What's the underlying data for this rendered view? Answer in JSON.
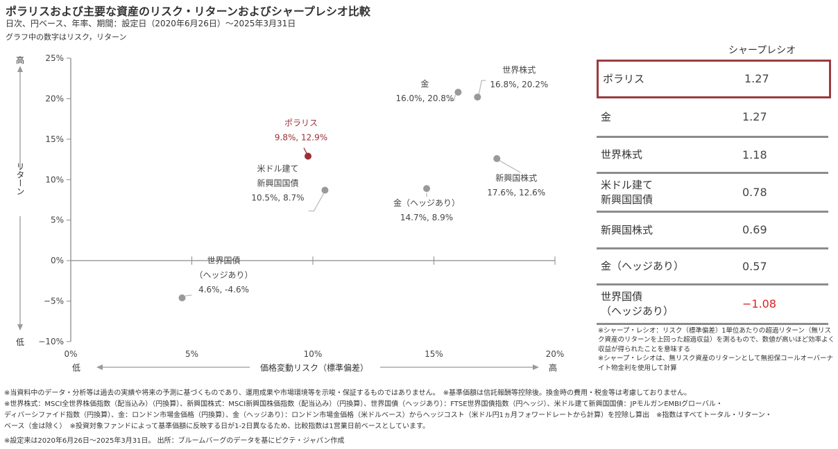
{
  "header": {
    "title": "ポラリスおよび主要な資産のリスク・リターンおよびシャープレシオ比較",
    "subtitle": "日次、円ベース、年率、期間：設定日（2020年6月26日）～2025年3月31日",
    "note": "グラフ中の数字はリスク，リターン"
  },
  "chart_data": {
    "type": "scatter",
    "title": "ポラリスおよび主要な資産のリスク・リターンおよびシャープレシオ比較",
    "xlabel": "価格変動リスク（標準偏差）",
    "ylabel": "リターン",
    "xlim": [
      0,
      20
    ],
    "ylim": [
      -10,
      25
    ],
    "x_ticks": [
      "0%",
      "5%",
      "10%",
      "15%",
      "20%"
    ],
    "y_ticks": [
      "25%",
      "20%",
      "15%",
      "10%",
      "5%",
      "0%",
      "−5%",
      "−10%"
    ],
    "x_low_label": "低",
    "x_high_label": "高",
    "y_low_label": "低",
    "y_high_label": "高",
    "colors": {
      "highlight": "#9b2f35",
      "point": "#999999"
    },
    "points": [
      {
        "name": "ポラリス",
        "name_lines": [
          "ポラリス"
        ],
        "label": "9.8%, 12.9%",
        "x": 9.8,
        "y": 12.9,
        "highlight": true
      },
      {
        "name": "金",
        "name_lines": [
          "金"
        ],
        "label": "16.0%, 20.8%",
        "x": 16.0,
        "y": 20.8,
        "highlight": false
      },
      {
        "name": "世界株式",
        "name_lines": [
          "世界株式"
        ],
        "label": "16.8%, 20.2%",
        "x": 16.8,
        "y": 20.2,
        "highlight": false
      },
      {
        "name": "新興国株式",
        "name_lines": [
          "新興国株式"
        ],
        "label": "17.6%, 12.6%",
        "x": 17.6,
        "y": 12.6,
        "highlight": false
      },
      {
        "name": "米ドル建て新興国国債",
        "name_lines": [
          "米ドル建て",
          "新興国国債"
        ],
        "label": "10.5%, 8.7%",
        "x": 10.5,
        "y": 8.7,
        "highlight": false
      },
      {
        "name": "金（ヘッジあり）",
        "name_lines": [
          "金（ヘッジあり）"
        ],
        "label": "14.7%, 8.9%",
        "x": 14.7,
        "y": 8.9,
        "highlight": false
      },
      {
        "name": "世界国債（ヘッジあり）",
        "name_lines": [
          "世界国債",
          "（ヘッジあり）"
        ],
        "label": "4.6%, -4.6%",
        "x": 4.6,
        "y": -4.6,
        "highlight": false
      }
    ]
  },
  "sharpe_table": {
    "header": "シャープレシオ",
    "rows": [
      {
        "name_lines": [
          "ポラリス"
        ],
        "value": "1.27",
        "highlight": true,
        "negative": false
      },
      {
        "name_lines": [
          "金"
        ],
        "value": "1.27",
        "highlight": false,
        "negative": false
      },
      {
        "name_lines": [
          "世界株式"
        ],
        "value": "1.18",
        "highlight": false,
        "negative": false
      },
      {
        "name_lines": [
          "米ドル建て",
          "新興国国債"
        ],
        "value": "0.78",
        "highlight": false,
        "negative": false
      },
      {
        "name_lines": [
          "新興国株式"
        ],
        "value": "0.69",
        "highlight": false,
        "negative": false
      },
      {
        "name_lines": [
          "金（ヘッジあり）"
        ],
        "value": "0.57",
        "highlight": false,
        "negative": false
      },
      {
        "name_lines": [
          "世界国債",
          "（ヘッジあり）"
        ],
        "value": "−1.08",
        "highlight": false,
        "negative": true
      }
    ],
    "notes": [
      "※シャープ・レシオ：リスク（標準偏差）1単位あたりの超過リターン（無リスク資産のリターンを上回った超過収益）を測るもので、数値が高いほど効率よく収益が得られたことを意味する",
      "※シャープ・レシオは、無リスク資産のリターンとして無担保コールオーバーナイト物金利を使用して計算"
    ]
  },
  "footnotes": [
    "※当資料中のデータ・分析等は過去の実績や将来の予測に基づくものであり、運用成果や市場環境等を示唆・保証するものではありません。　※基準価額は信託報酬等控除後。換金時の費用・税金等は考慮しておりません。",
    "※世界株式：MSCI全世界株価指数（配当込み）（円換算）、新興国株式：MSCI新興国株価指数（配当込み）（円換算）、世界国債（ヘッジあり）：FTSE世界国債指数（円ヘッジ）、米ドル建て新興国国債：JPモルガンEMBIグローバル・",
    "ディバーシファイド指数（円換算）、金：ロンドン市場金価格（円換算）、金（ヘッジあり）：ロンドン市場金価格（米ドルベース）からヘッジコスト（米ドル円1ヵ月フォワードレートから計算）を控除し算出　※指数はすべてトータル・リターン・",
    "ベース（金は除く）　※投資対象ファンドによって基準価額に反映する日が1‐2日異なるため、比較指数は1営業日前ベースとしています。",
    "※設定来は2020年6月26日～2025年3月31日。 出所：ブルームバーグのデータを基にピクテ・ジャパン作成"
  ]
}
